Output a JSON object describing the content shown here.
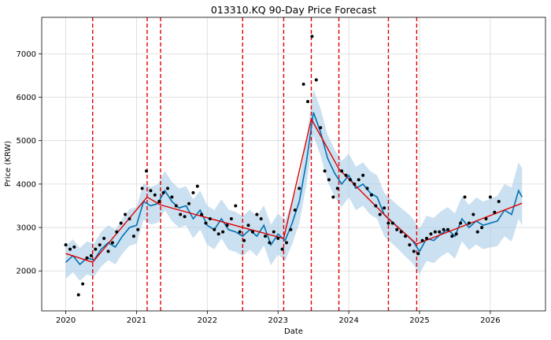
{
  "chart_data": {
    "type": "line",
    "title": "013310.KQ 90-Day Price Forecast",
    "xlabel": "Date",
    "ylabel": "Price (KRW)",
    "xlim": [
      2019.66,
      2026.78
    ],
    "ylim": [
      1080,
      7840
    ],
    "x_ticks": [
      {
        "value": 2020,
        "label": "2020"
      },
      {
        "value": 2021,
        "label": "2021"
      },
      {
        "value": 2022,
        "label": "2022"
      },
      {
        "value": 2023,
        "label": "2023"
      },
      {
        "value": 2024,
        "label": "2024"
      },
      {
        "value": 2025,
        "label": "2025"
      },
      {
        "value": 2026,
        "label": "2026"
      }
    ],
    "y_ticks": [
      {
        "value": 2000,
        "label": "2000"
      },
      {
        "value": 3000,
        "label": "3000"
      },
      {
        "value": 4000,
        "label": "4000"
      },
      {
        "value": 5000,
        "label": "5000"
      },
      {
        "value": 6000,
        "label": "6000"
      },
      {
        "value": 7000,
        "label": "7000"
      }
    ],
    "grid": true,
    "colors": {
      "observed": "#000000",
      "forecast": "#0072B2",
      "interval": "#a8cbe6",
      "trend": "#e00000",
      "changepoint": "#e00000"
    },
    "changepoints": [
      2020.38,
      2021.15,
      2021.34,
      2022.5,
      2023.08,
      2023.47,
      2023.86,
      2024.56,
      2024.96
    ],
    "trend": {
      "x": [
        2020.0,
        2020.38,
        2021.15,
        2021.34,
        2022.5,
        2023.08,
        2023.47,
        2023.86,
        2024.56,
        2024.96,
        2026.45
      ],
      "y": [
        2400,
        2200,
        3700,
        3520,
        3000,
        2750,
        5500,
        4350,
        3200,
        2620,
        3560
      ]
    },
    "forecast": {
      "x": [
        2020.0,
        2020.1,
        2020.2,
        2020.3,
        2020.4,
        2020.5,
        2020.6,
        2020.7,
        2020.8,
        2020.9,
        2021.0,
        2021.1,
        2021.2,
        2021.3,
        2021.4,
        2021.5,
        2021.6,
        2021.7,
        2021.8,
        2021.9,
        2022.0,
        2022.1,
        2022.2,
        2022.3,
        2022.4,
        2022.5,
        2022.6,
        2022.7,
        2022.8,
        2022.9,
        2023.0,
        2023.1,
        2023.2,
        2023.3,
        2023.4,
        2023.5,
        2023.6,
        2023.7,
        2023.8,
        2023.9,
        2024.0,
        2024.1,
        2024.2,
        2024.3,
        2024.4,
        2024.5,
        2024.6,
        2024.7,
        2024.8,
        2024.9,
        2025.0,
        2025.1,
        2025.2,
        2025.3,
        2025.4,
        2025.5,
        2025.6,
        2025.7,
        2025.8,
        2025.9,
        2026.0,
        2026.1,
        2026.2,
        2026.3,
        2026.4,
        2026.45
      ],
      "y": [
        2200,
        2350,
        2150,
        2300,
        2250,
        2500,
        2650,
        2550,
        2800,
        3000,
        3050,
        3600,
        3500,
        3550,
        3850,
        3600,
        3450,
        3500,
        3200,
        3400,
        3050,
        2950,
        3200,
        2950,
        2900,
        2800,
        2950,
        2800,
        3050,
        2600,
        2850,
        2700,
        3100,
        3600,
        4500,
        5650,
        5200,
        4600,
        4250,
        4000,
        4200,
        3900,
        4000,
        3800,
        3700,
        3300,
        3150,
        3000,
        2850,
        2700,
        2450,
        2750,
        2700,
        2850,
        2950,
        2800,
        3200,
        3000,
        3150,
        3050,
        3100,
        3150,
        3400,
        3300,
        3850,
        3700
      ],
      "band": [
        380,
        380,
        380,
        380,
        380,
        400,
        400,
        400,
        400,
        420,
        420,
        420,
        430,
        440,
        450,
        450,
        450,
        450,
        450,
        450,
        450,
        450,
        450,
        460,
        460,
        460,
        460,
        460,
        460,
        470,
        470,
        470,
        480,
        500,
        520,
        540,
        540,
        540,
        540,
        530,
        500,
        500,
        500,
        500,
        500,
        500,
        500,
        500,
        520,
        520,
        520,
        520,
        520,
        520,
        520,
        520,
        520,
        520,
        540,
        550,
        560,
        580,
        600,
        620,
        650,
        660
      ]
    },
    "observed": {
      "x": [
        2020.0,
        2020.06,
        2020.12,
        2020.18,
        2020.24,
        2020.3,
        2020.36,
        2020.42,
        2020.48,
        2020.54,
        2020.6,
        2020.66,
        2020.72,
        2020.78,
        2020.84,
        2020.9,
        2020.96,
        2021.02,
        2021.08,
        2021.14,
        2021.2,
        2021.26,
        2021.32,
        2021.38,
        2021.44,
        2021.5,
        2021.56,
        2021.62,
        2021.68,
        2021.74,
        2021.8,
        2021.86,
        2021.92,
        2021.98,
        2022.04,
        2022.1,
        2022.16,
        2022.22,
        2022.28,
        2022.34,
        2022.4,
        2022.46,
        2022.52,
        2022.58,
        2022.64,
        2022.7,
        2022.76,
        2022.82,
        2022.88,
        2022.94,
        2023.0,
        2023.06,
        2023.12,
        2023.18,
        2023.24,
        2023.3,
        2023.36,
        2023.42,
        2023.48,
        2023.54,
        2023.6,
        2023.66,
        2023.72,
        2023.78,
        2023.84,
        2023.9,
        2023.96,
        2024.02,
        2024.08,
        2024.14,
        2024.2,
        2024.26,
        2024.32,
        2024.38,
        2024.44,
        2024.5,
        2024.56,
        2024.62,
        2024.68,
        2024.74,
        2024.8,
        2024.86,
        2024.92,
        2024.98,
        2025.04,
        2025.1,
        2025.16,
        2025.22,
        2025.28,
        2025.34,
        2025.4,
        2025.46,
        2025.52,
        2025.58,
        2025.64,
        2025.7,
        2025.76,
        2025.82,
        2025.88,
        2025.94,
        2026.0,
        2026.06,
        2026.12
      ],
      "y": [
        2600,
        2500,
        2550,
        1450,
        1700,
        2300,
        2350,
        2500,
        2600,
        2750,
        2450,
        2650,
        2900,
        3100,
        3300,
        3200,
        2800,
        2950,
        3900,
        4300,
        3850,
        3750,
        3600,
        3800,
        3900,
        3700,
        3500,
        3300,
        3250,
        3550,
        3800,
        3950,
        3300,
        3100,
        3200,
        2950,
        2850,
        2900,
        3050,
        3200,
        3500,
        2900,
        2700,
        3050,
        2900,
        3300,
        3200,
        2800,
        2650,
        2900,
        2750,
        2500,
        2650,
        2950,
        3400,
        3900,
        6300,
        5900,
        7400,
        6400,
        5300,
        4300,
        4100,
        3700,
        3900,
        4300,
        4200,
        4100,
        4000,
        4100,
        4200,
        3900,
        3750,
        3500,
        3300,
        3450,
        3100,
        3100,
        2950,
        2900,
        2800,
        2600,
        2450,
        2400,
        2700,
        2750,
        2850,
        2900,
        2900,
        2950,
        2950,
        2800,
        2850,
        3100,
        3700,
        3100,
        3300,
        2900,
        3000,
        3200,
        3700,
        3350,
        3600
      ]
    }
  }
}
